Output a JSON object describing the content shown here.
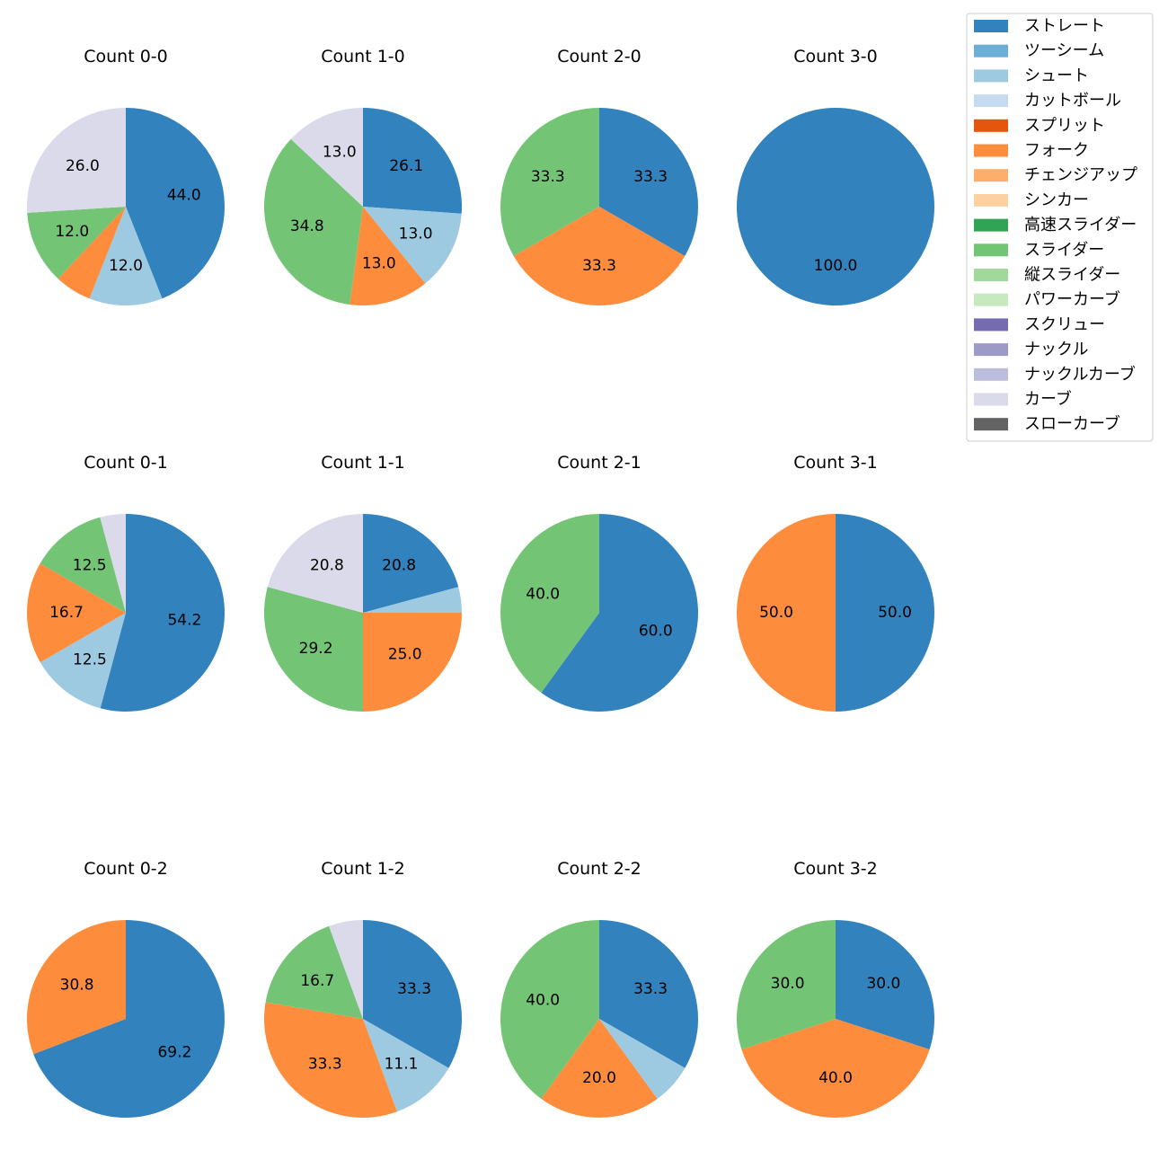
{
  "legend": {
    "placement": "top-right",
    "items": [
      {
        "label": "ストレート",
        "color": "#3182bd"
      },
      {
        "label": "ツーシーム",
        "color": "#6baed6"
      },
      {
        "label": "シュート",
        "color": "#9ecae1"
      },
      {
        "label": "カットボール",
        "color": "#c6dbef"
      },
      {
        "label": "スプリット",
        "color": "#e6550d"
      },
      {
        "label": "フォーク",
        "color": "#fd8d3c"
      },
      {
        "label": "チェンジアップ",
        "color": "#fdae6b"
      },
      {
        "label": "シンカー",
        "color": "#fdd0a2"
      },
      {
        "label": "高速スライダー",
        "color": "#31a354"
      },
      {
        "label": "スライダー",
        "color": "#74c476"
      },
      {
        "label": "縦スライダー",
        "color": "#a1d99b"
      },
      {
        "label": "パワーカーブ",
        "color": "#c7e9c0"
      },
      {
        "label": "スクリュー",
        "color": "#756bb1"
      },
      {
        "label": "ナックル",
        "color": "#9e9ac8"
      },
      {
        "label": "ナックルカーブ",
        "color": "#bcbddc"
      },
      {
        "label": "カーブ",
        "color": "#dadaeb"
      },
      {
        "label": "スローカーブ",
        "color": "#636363"
      }
    ]
  },
  "chart_data": [
    {
      "type": "pie",
      "title": "Count 0-0",
      "slices": [
        {
          "pitch": "ストレート",
          "value": 44.0,
          "label": "44.0"
        },
        {
          "pitch": "シュート",
          "value": 12.0,
          "label": "12.0"
        },
        {
          "pitch": "フォーク",
          "value": 6.0,
          "label": ""
        },
        {
          "pitch": "スライダー",
          "value": 12.0,
          "label": "12.0"
        },
        {
          "pitch": "カーブ",
          "value": 26.0,
          "label": "26.0"
        }
      ]
    },
    {
      "type": "pie",
      "title": "Count 1-0",
      "slices": [
        {
          "pitch": "ストレート",
          "value": 26.1,
          "label": "26.1"
        },
        {
          "pitch": "シュート",
          "value": 13.0,
          "label": "13.0"
        },
        {
          "pitch": "フォーク",
          "value": 13.0,
          "label": "13.0"
        },
        {
          "pitch": "スライダー",
          "value": 34.8,
          "label": "34.8"
        },
        {
          "pitch": "カーブ",
          "value": 13.0,
          "label": "13.0"
        }
      ]
    },
    {
      "type": "pie",
      "title": "Count 2-0",
      "slices": [
        {
          "pitch": "ストレート",
          "value": 33.3,
          "label": "33.3"
        },
        {
          "pitch": "フォーク",
          "value": 33.3,
          "label": "33.3"
        },
        {
          "pitch": "スライダー",
          "value": 33.3,
          "label": "33.3"
        }
      ]
    },
    {
      "type": "pie",
      "title": "Count 3-0",
      "slices": [
        {
          "pitch": "ストレート",
          "value": 100.0,
          "label": "100.0"
        }
      ]
    },
    {
      "type": "pie",
      "title": "Count 0-1",
      "slices": [
        {
          "pitch": "ストレート",
          "value": 54.2,
          "label": "54.2"
        },
        {
          "pitch": "シュート",
          "value": 12.5,
          "label": "12.5"
        },
        {
          "pitch": "フォーク",
          "value": 16.7,
          "label": "16.7"
        },
        {
          "pitch": "スライダー",
          "value": 12.5,
          "label": "12.5"
        },
        {
          "pitch": "カーブ",
          "value": 4.2,
          "label": ""
        }
      ]
    },
    {
      "type": "pie",
      "title": "Count 1-1",
      "slices": [
        {
          "pitch": "ストレート",
          "value": 20.8,
          "label": "20.8"
        },
        {
          "pitch": "シュート",
          "value": 4.2,
          "label": ""
        },
        {
          "pitch": "フォーク",
          "value": 25.0,
          "label": "25.0"
        },
        {
          "pitch": "スライダー",
          "value": 29.2,
          "label": "29.2"
        },
        {
          "pitch": "カーブ",
          "value": 20.8,
          "label": "20.8"
        }
      ]
    },
    {
      "type": "pie",
      "title": "Count 2-1",
      "slices": [
        {
          "pitch": "ストレート",
          "value": 60.0,
          "label": "60.0"
        },
        {
          "pitch": "スライダー",
          "value": 40.0,
          "label": "40.0"
        }
      ]
    },
    {
      "type": "pie",
      "title": "Count 3-1",
      "slices": [
        {
          "pitch": "ストレート",
          "value": 50.0,
          "label": "50.0"
        },
        {
          "pitch": "フォーク",
          "value": 50.0,
          "label": "50.0"
        }
      ]
    },
    {
      "type": "pie",
      "title": "Count 0-2",
      "slices": [
        {
          "pitch": "ストレート",
          "value": 69.2,
          "label": "69.2"
        },
        {
          "pitch": "フォーク",
          "value": 30.8,
          "label": "30.8"
        }
      ]
    },
    {
      "type": "pie",
      "title": "Count 1-2",
      "slices": [
        {
          "pitch": "ストレート",
          "value": 33.3,
          "label": "33.3"
        },
        {
          "pitch": "シュート",
          "value": 11.1,
          "label": "11.1"
        },
        {
          "pitch": "フォーク",
          "value": 33.3,
          "label": "33.3"
        },
        {
          "pitch": "スライダー",
          "value": 16.7,
          "label": "16.7"
        },
        {
          "pitch": "カーブ",
          "value": 5.6,
          "label": ""
        }
      ]
    },
    {
      "type": "pie",
      "title": "Count 2-2",
      "slices": [
        {
          "pitch": "ストレート",
          "value": 33.3,
          "label": "33.3"
        },
        {
          "pitch": "シュート",
          "value": 6.7,
          "label": ""
        },
        {
          "pitch": "フォーク",
          "value": 20.0,
          "label": "20.0"
        },
        {
          "pitch": "スライダー",
          "value": 40.0,
          "label": "40.0"
        }
      ]
    },
    {
      "type": "pie",
      "title": "Count 3-2",
      "slices": [
        {
          "pitch": "ストレート",
          "value": 30.0,
          "label": "30.0"
        },
        {
          "pitch": "フォーク",
          "value": 40.0,
          "label": "40.0"
        },
        {
          "pitch": "スライダー",
          "value": 30.0,
          "label": "30.0"
        }
      ]
    }
  ]
}
